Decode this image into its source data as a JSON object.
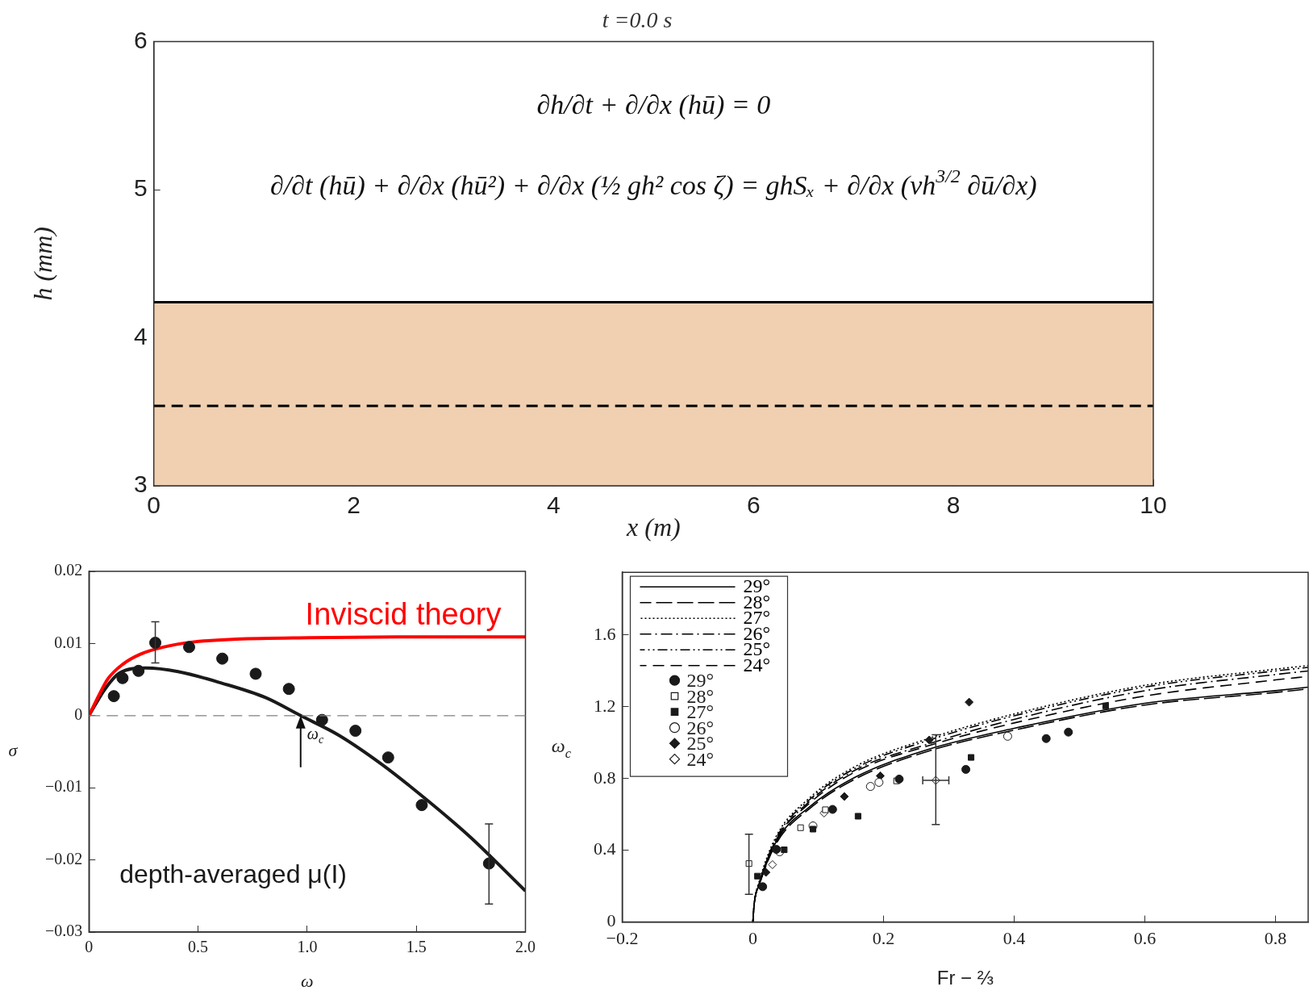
{
  "chart_data": [
    {
      "type": "area",
      "title": "t =0.0 s",
      "xlabel": "x (m)",
      "ylabel": "h (mm)",
      "x": [
        0,
        10
      ],
      "xlim": [
        0,
        10
      ],
      "ylim": [
        3,
        6
      ],
      "xticks": [
        0,
        2,
        4,
        6,
        8,
        10
      ],
      "yticks": [
        3,
        4,
        5,
        6
      ],
      "grid": false,
      "legend": false,
      "series": [
        {
          "color": "#f0d0b0",
          "values": [
            4.24,
            4.24
          ]
        },
        {
          "type": "line",
          "color": "#000000",
          "line_style": "dashed",
          "values": [
            3.54,
            3.54
          ]
        }
      ],
      "annotations": [
        "∂h/∂t + ∂/∂x (hū) = 0",
        "∂/∂t (hū) + ∂/∂x (hū²) + ∂/∂x (½ gh² cos ζ) = ghSₓ + ∂/∂x (νh$^{3/2}$ ∂ū/∂x)"
      ]
    },
    {
      "type": "line",
      "xlabel": "ω",
      "ylabel": "σ",
      "xlim": [
        0,
        2
      ],
      "ylim": [
        -0.03,
        0.02
      ],
      "grid": false,
      "legend": false,
      "marker": "none",
      "xticks": [
        0,
        0.5,
        {
          "value": 1,
          "label": "1.0"
        },
        1.5,
        {
          "value": 2,
          "label": "2.0"
        }
      ],
      "yticks": [
        {
          "value": -0.03,
          "label": "−0.03"
        },
        {
          "value": -0.02,
          "label": "−0.02"
        },
        {
          "value": -0.01,
          "label": "−0.01"
        },
        0,
        0.01,
        0.02
      ],
      "ref_lines": [
        {
          "axis": "y",
          "value": 0,
          "color": "#808080",
          "line_style": "dashed"
        }
      ],
      "annotations": [
        {
          "text": "ω$_{c}$",
          "x": 0.97,
          "y": 0
        }
      ],
      "series": [
        {
          "name": "Inviscid theory",
          "color": "#ff0000",
          "x": [
            0,
            0.047,
            0.087,
            0.154,
            0.234,
            0.341,
            0.475,
            0.676,
            1.01,
            1.41,
            2.0
          ],
          "values": [
            0,
            0.0029,
            0.0051,
            0.0071,
            0.0085,
            0.0095,
            0.0102,
            0.0106,
            0.0108,
            0.0109,
            0.0109
          ]
        },
        {
          "name": "depth-averaged μ(I)",
          "color": "#1a1a1a",
          "x": [
            0,
            0.074,
            0.14,
            0.261,
            0.408,
            0.609,
            0.809,
            0.97,
            1.144,
            1.344,
            1.545,
            1.746,
            2.0
          ],
          "values": [
            0,
            0.0037,
            0.0059,
            0.0066,
            0.0061,
            0.0045,
            0.0025,
            0,
            -0.0027,
            -0.0068,
            -0.0116,
            -0.0168,
            -0.0243
          ]
        },
        {
          "type": "scatter",
          "color": "#1a1a1a",
          "marker": "circle",
          "x": [
            0.114,
            0.154,
            0.227,
            0.304,
            0.459,
            0.611,
            0.764,
            0.916,
            1.068,
            1.221,
            1.371,
            1.525,
            1.833
          ],
          "values": [
            0.0027,
            0.0052,
            0.0062,
            0.0101,
            0.0095,
            0.0079,
            0.0058,
            0.0037,
            -0.0006,
            -0.0021,
            -0.0058,
            -0.0124,
            -0.0205
          ],
          "errors": [
            null,
            null,
            null,
            [
              0.0073,
              0.013
            ],
            null,
            null,
            null,
            null,
            null,
            null,
            null,
            null,
            [
              -0.0261,
              -0.015
            ]
          ]
        }
      ]
    },
    {
      "type": "line",
      "xlabel": "Fr − ⅔",
      "ylabel": "ω$_{c}$",
      "xlim": [
        -0.2,
        0.85
      ],
      "ylim": [
        0,
        1.95
      ],
      "grid": false,
      "legend": "top left",
      "xticks": [
        {
          "value": -0.2,
          "label": "−0.2"
        },
        0,
        0.2,
        0.4,
        0.6,
        0.8
      ],
      "yticks": [
        0,
        0.4,
        0.8,
        1.2,
        1.6
      ],
      "series": [
        {
          "name": "29°",
          "color": "#000000",
          "line_style": "solid",
          "marker": "none",
          "x": [
            0,
            0.002,
            0.01,
            0.036,
            0.086,
            0.158,
            0.266,
            0.4,
            0.6,
            0.8,
            0.85
          ],
          "values": [
            0,
            0.1,
            0.21,
            0.45,
            0.64,
            0.81,
            0.96,
            1.08,
            1.22,
            1.29,
            1.31
          ]
        },
        {
          "name": "28°",
          "color": "#000000",
          "line_style": "longdash",
          "marker": "none",
          "x": [
            0,
            0.002,
            0.01,
            0.036,
            0.086,
            0.158,
            0.266,
            0.4,
            0.6,
            0.8,
            0.85
          ],
          "values": [
            0,
            0.1,
            0.21,
            0.44,
            0.63,
            0.8,
            0.95,
            1.07,
            1.21,
            1.28,
            1.3
          ]
        },
        {
          "name": "27°",
          "color": "#000000",
          "line_style": "dotted",
          "marker": "none",
          "x": [
            0,
            0.002,
            0.01,
            0.036,
            0.086,
            0.158,
            0.266,
            0.4,
            0.6,
            0.8,
            0.85
          ],
          "values": [
            0,
            0.1,
            0.23,
            0.48,
            0.69,
            0.87,
            1.02,
            1.16,
            1.32,
            1.41,
            1.43
          ]
        },
        {
          "name": "26°",
          "color": "#000000",
          "line_style": "dashdot",
          "marker": "none",
          "x": [
            0,
            0.002,
            0.01,
            0.036,
            0.086,
            0.158,
            0.266,
            0.4,
            0.6,
            0.8,
            0.85
          ],
          "values": [
            0,
            0.1,
            0.22,
            0.46,
            0.67,
            0.85,
            0.99,
            1.13,
            1.29,
            1.38,
            1.4
          ]
        },
        {
          "name": "25°",
          "color": "#000000",
          "line_style": "dashdotdot",
          "marker": "none",
          "x": [
            0,
            0.002,
            0.01,
            0.036,
            0.086,
            0.158,
            0.266,
            0.4,
            0.6,
            0.8,
            0.85
          ],
          "values": [
            0,
            0.1,
            0.22,
            0.47,
            0.68,
            0.86,
            1.01,
            1.15,
            1.31,
            1.4,
            1.42
          ]
        },
        {
          "name": "24°",
          "color": "#000000",
          "line_style": "dashed",
          "marker": "none",
          "x": [
            0,
            0.002,
            0.01,
            0.036,
            0.086,
            0.158,
            0.266,
            0.4,
            0.6,
            0.8,
            0.85
          ],
          "values": [
            0,
            0.1,
            0.22,
            0.46,
            0.66,
            0.84,
            0.98,
            1.11,
            1.26,
            1.35,
            1.37
          ]
        },
        {
          "type": "scatter",
          "name": "29°",
          "color": "#1a1a1a",
          "marker": "circle",
          "x": [
            0.015,
            0.036,
            0.122,
            0.224,
            0.326,
            0.449,
            0.483
          ],
          "values": [
            0.197,
            0.405,
            0.628,
            0.797,
            0.851,
            1.023,
            1.059
          ]
        },
        {
          "type": "scatter",
          "name": "28°",
          "color": "#ffffff",
          "marker": "square",
          "x": [
            -0.006,
            0.073,
            0.111,
            0.22
          ],
          "values": [
            0.326,
            0.526,
            0.626,
            0.787
          ],
          "errors": [
            [
              0.154,
              0.49
            ],
            null,
            null,
            null
          ]
        },
        {
          "type": "scatter",
          "name": "27°",
          "color": "#1a1a1a",
          "marker": "square",
          "x": [
            0.007,
            0.048,
            0.092,
            0.161,
            0.334,
            0.54
          ],
          "values": [
            0.256,
            0.403,
            0.518,
            0.59,
            0.918,
            1.205
          ]
        },
        {
          "type": "scatter",
          "name": "26°",
          "color": "#ffffff",
          "marker": "circle",
          "x": [
            0.041,
            0.092,
            0.18,
            0.193,
            0.39
          ],
          "values": [
            0.392,
            0.536,
            0.756,
            0.779,
            1.036
          ]
        },
        {
          "type": "scatter",
          "name": "25°",
          "color": "#1a1a1a",
          "marker": "diamond",
          "x": [
            0.02,
            0.14,
            0.195,
            0.27,
            0.331
          ],
          "values": [
            0.277,
            0.7,
            0.815,
            1.015,
            1.226
          ]
        },
        {
          "type": "scatter",
          "name": "24°",
          "color": "#ffffff",
          "marker": "diamond",
          "x": [
            0.03,
            0.109,
            0.28
          ],
          "values": [
            0.32,
            0.608,
            0.79
          ],
          "errors": [
            null,
            null,
            [
              0.544,
              1.044
            ]
          ],
          "xerrors": [
            null,
            null,
            [
              0.26,
              0.3
            ]
          ]
        }
      ]
    }
  ]
}
